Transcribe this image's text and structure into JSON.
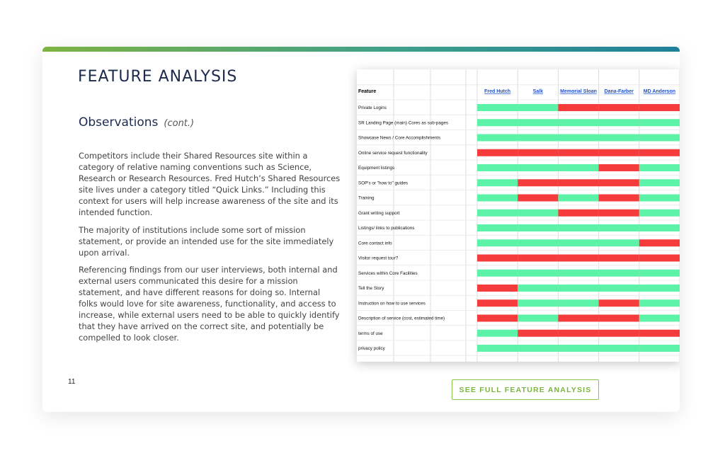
{
  "title": "FEATURE ANALYSIS",
  "observations": {
    "heading": "Observations",
    "cont": "(cont.)"
  },
  "paragraphs": [
    "Competitors include their Shared Resources site within a category of relative naming conventions such as Science, Research or Research Resources. Fred Hutch’s Shared Resources site lives under a category titled “Quick Links.” Including this context for users will help increase awareness of the site and its intended function.",
    "The majority of institutions include some sort of mission statement, or provide an intended use for the site immediately upon arrival.",
    "Referencing findings from our user interviews, both internal and external users communicated this desire for a mission statement, and have different reasons for doing so. Internal folks would love for site awareness, functionality, and access to increase, while external users need to be able to quickly identify that they have arrived on the correct site, and potentially be compelled to look closer."
  ],
  "page_number": "11",
  "cta_label": "SEE FULL FEATURE ANALYSIS",
  "colors": {
    "yes": "#5cf2a8",
    "no": "#f53b3b",
    "link": "#1a4fd6",
    "accent": "#7cb342"
  },
  "table": {
    "feature_header": "Feature",
    "columns": [
      "Fred Hutch",
      "Salk",
      "Memorial Sloan",
      "Dana-Farber",
      "MD Anderson"
    ],
    "rows": [
      {
        "feature": "Private Logins",
        "values": [
          1,
          1,
          0,
          0,
          0
        ]
      },
      {
        "feature": "SR Landing Page (main) Cores as sub-pages",
        "values": [
          1,
          1,
          1,
          1,
          1
        ]
      },
      {
        "feature": "Showcase News / Core Accomplishments",
        "values": [
          1,
          1,
          1,
          1,
          1
        ]
      },
      {
        "feature": "Online service request functionality",
        "values": [
          0,
          0,
          0,
          0,
          0
        ]
      },
      {
        "feature": "Equipment listings",
        "values": [
          1,
          1,
          1,
          0,
          1
        ]
      },
      {
        "feature": "SOP's or \"how to\" guides",
        "values": [
          1,
          0,
          0,
          0,
          1
        ]
      },
      {
        "feature": "Training",
        "values": [
          1,
          0,
          1,
          0,
          1
        ]
      },
      {
        "feature": "Grant writing support",
        "values": [
          1,
          1,
          0,
          0,
          1
        ]
      },
      {
        "feature": "Listings/ links to publications",
        "values": [
          1,
          1,
          1,
          1,
          1
        ]
      },
      {
        "feature": "Core contact info",
        "values": [
          1,
          1,
          1,
          1,
          0
        ]
      },
      {
        "feature": "Visitor request tour?",
        "values": [
          0,
          0,
          0,
          0,
          0
        ]
      },
      {
        "feature": "Services within Core Facilities",
        "values": [
          1,
          1,
          1,
          1,
          1
        ]
      },
      {
        "feature": "Tell the Story",
        "values": [
          0,
          1,
          1,
          1,
          1
        ]
      },
      {
        "feature": "Instruction on how to use services",
        "values": [
          0,
          1,
          1,
          0,
          1
        ]
      },
      {
        "feature": "Description of service (cost, estimated time)",
        "values": [
          0,
          1,
          0,
          0,
          1
        ]
      },
      {
        "feature": "terms of use",
        "values": [
          1,
          0,
          0,
          0,
          0
        ]
      },
      {
        "feature": "privacy policy",
        "values": [
          1,
          1,
          1,
          1,
          1
        ]
      }
    ]
  }
}
